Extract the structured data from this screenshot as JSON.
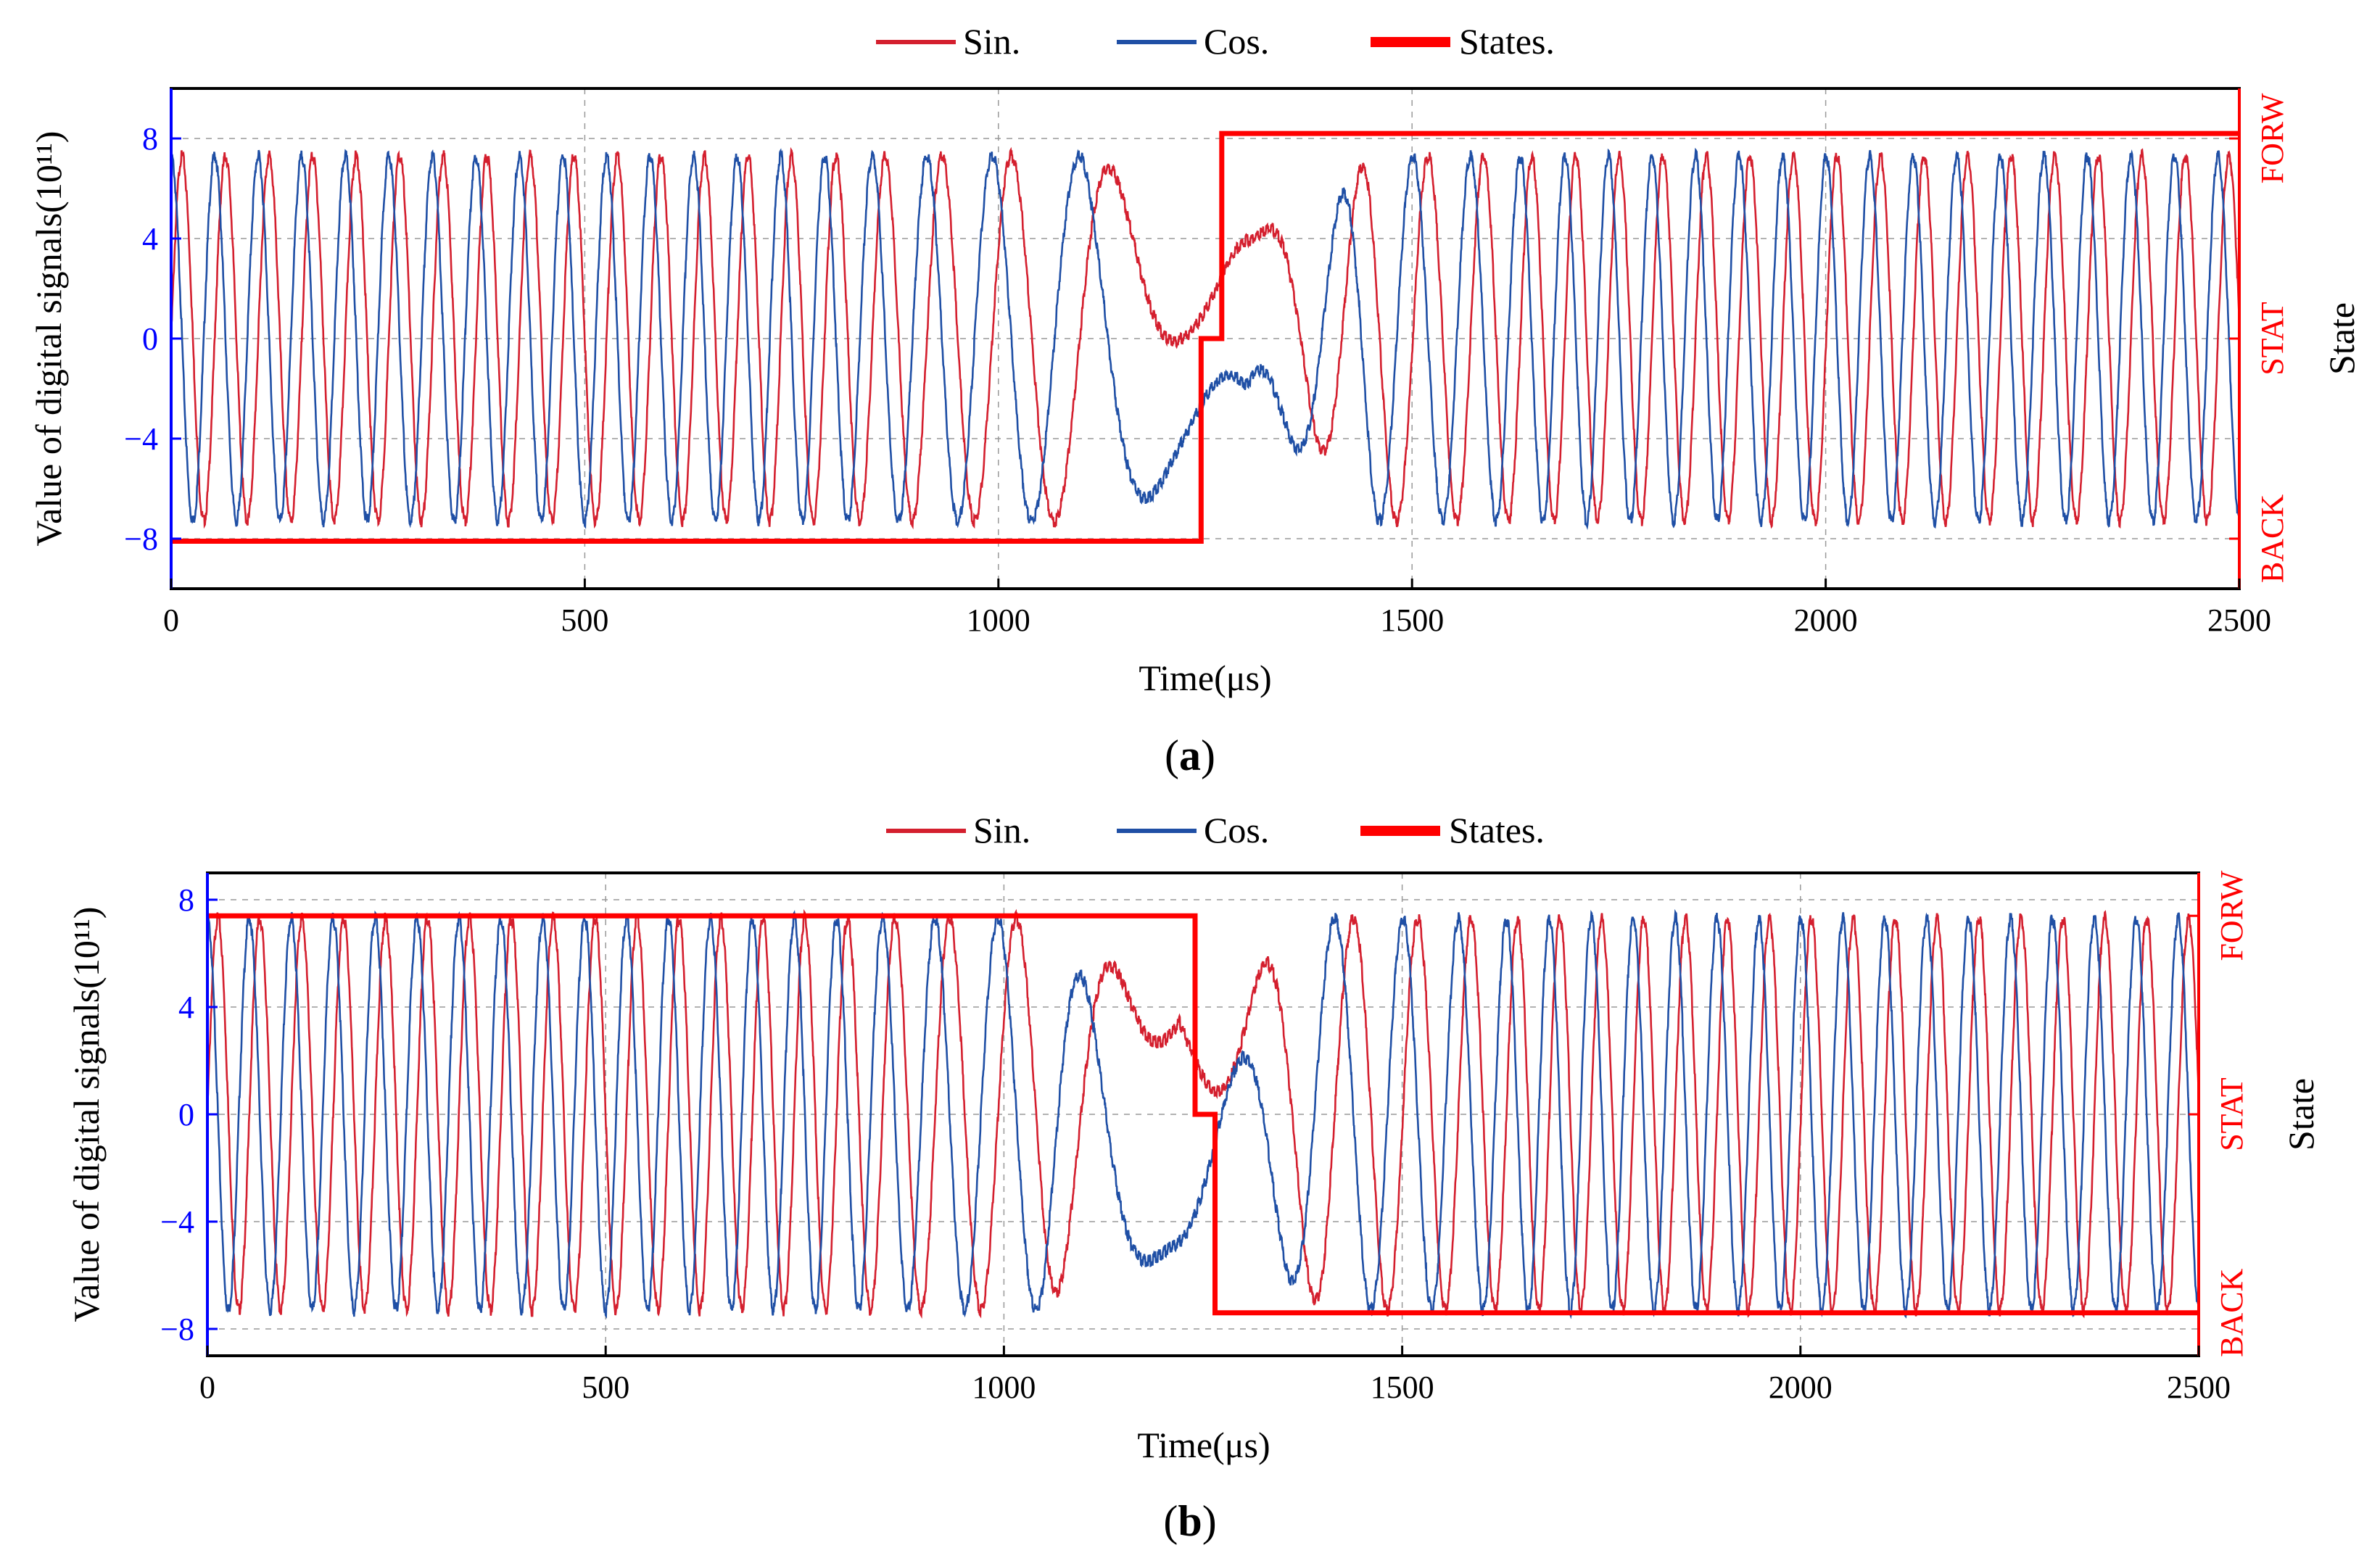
{
  "colors": {
    "sin": "#d41f2e",
    "cos": "#1f4fa5",
    "states": "#ff0000",
    "left_axis": "#0000ff",
    "right_axis": "#ff0000",
    "grid": "#999999"
  },
  "chart_data": [
    {
      "panel_label": "a",
      "type": "line",
      "xlabel": "Time(μs)",
      "ylabel": "Value of digital signals(10¹¹)",
      "y2label": "State",
      "xlim": [
        0,
        2500
      ],
      "ylim": [
        -10,
        10
      ],
      "xticks": [
        0,
        500,
        1000,
        1500,
        2000,
        2500
      ],
      "yticks": [
        -8,
        -4,
        0,
        4,
        8
      ],
      "ytick_labels": [
        "−8",
        "−4",
        "0",
        "4",
        "8"
      ],
      "state_ticks": [
        {
          "label": "BACK",
          "level": -8
        },
        {
          "label": "STAT",
          "level": 0
        },
        {
          "label": "FORW",
          "level": 8
        }
      ],
      "grid": true,
      "legend_position": "top-center",
      "series": [
        {
          "name": "Sin.",
          "kind": "sin",
          "amplitude": 7.3,
          "envelope": [
            [
              0,
              1
            ],
            [
              1100,
              1
            ],
            [
              1300,
              0.15
            ],
            [
              1450,
              1
            ],
            [
              2500,
              1
            ]
          ],
          "offset_bump": [
            1220,
            6.1,
            130
          ],
          "cycles_approx": 47
        },
        {
          "name": "Cos.",
          "kind": "cos",
          "amplitude": 7.3,
          "envelope": [
            [
              0,
              1
            ],
            [
              1100,
              1
            ],
            [
              1300,
              0.15
            ],
            [
              1450,
              1
            ],
            [
              2500,
              1
            ]
          ],
          "offset_bump": [
            1220,
            -5.0,
            130
          ],
          "cycles_approx": 47
        },
        {
          "name": "States.",
          "kind": "state",
          "steps": [
            [
              0,
              -8.1
            ],
            [
              1245,
              -8.1
            ],
            [
              1245,
              0
            ],
            [
              1270,
              0
            ],
            [
              1270,
              8.2
            ],
            [
              2500,
              8.2
            ]
          ]
        }
      ]
    },
    {
      "panel_label": "b",
      "type": "line",
      "xlabel": "Time(μs)",
      "ylabel": "Value of digital signals(10¹¹)",
      "y2label": "State",
      "xlim": [
        0,
        2500
      ],
      "ylim": [
        -9,
        9
      ],
      "xticks": [
        0,
        500,
        1000,
        1500,
        2000,
        2500
      ],
      "yticks": [
        -8,
        -4,
        0,
        4,
        8
      ],
      "ytick_labels": [
        "−8",
        "−4",
        "0",
        "4",
        "8"
      ],
      "state_ticks": [
        {
          "label": "BACK",
          "level": -7.4
        },
        {
          "label": "STAT",
          "level": 0
        },
        {
          "label": "FORW",
          "level": 7.4
        }
      ],
      "grid": true,
      "legend_position": "top-center",
      "series": [
        {
          "name": "Sin.",
          "kind": "sin",
          "amplitude": 7.3,
          "envelope": [
            [
              0,
              1
            ],
            [
              1050,
              1
            ],
            [
              1220,
              0.15
            ],
            [
              1400,
              1
            ],
            [
              2500,
              1
            ]
          ],
          "offset_bump": [
            1220,
            5.2,
            120
          ],
          "cycles_approx": 47
        },
        {
          "name": "Cos.",
          "kind": "cos",
          "amplitude": 7.3,
          "envelope": [
            [
              0,
              1
            ],
            [
              1050,
              1
            ],
            [
              1220,
              0.15
            ],
            [
              1400,
              1
            ],
            [
              2500,
              1
            ]
          ],
          "offset_bump": [
            1220,
            -5.0,
            120
          ],
          "cycles_approx": 47
        },
        {
          "name": "States.",
          "kind": "state",
          "steps": [
            [
              0,
              7.4
            ],
            [
              1240,
              7.4
            ],
            [
              1240,
              0
            ],
            [
              1265,
              0
            ],
            [
              1265,
              -7.4
            ],
            [
              2500,
              -7.4
            ]
          ]
        }
      ]
    }
  ]
}
